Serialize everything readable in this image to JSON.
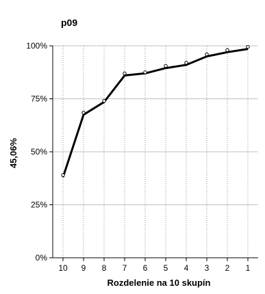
{
  "chart_data": {
    "type": "line",
    "title": "p09",
    "xlabel": "Rozdelenie na 10 skupín",
    "ylabel": "45,06%",
    "categories": [
      "10",
      "9",
      "8",
      "7",
      "6",
      "5",
      "4",
      "3",
      "2",
      "1"
    ],
    "y_ticks": [
      "0%",
      "25%",
      "50%",
      "75%",
      "100%"
    ],
    "ylim": [
      0,
      100
    ],
    "grid": true,
    "series": [
      {
        "style": "line",
        "color": "#000000",
        "values": [
          38,
          67.5,
          73.5,
          86,
          87,
          89.5,
          91,
          95,
          97,
          98.5
        ]
      },
      {
        "style": "markers",
        "marker": "open-circle",
        "color": "#000000",
        "values": [
          39,
          68.5,
          74,
          87,
          87.5,
          90.5,
          92,
          96,
          98,
          99.5
        ]
      }
    ]
  }
}
